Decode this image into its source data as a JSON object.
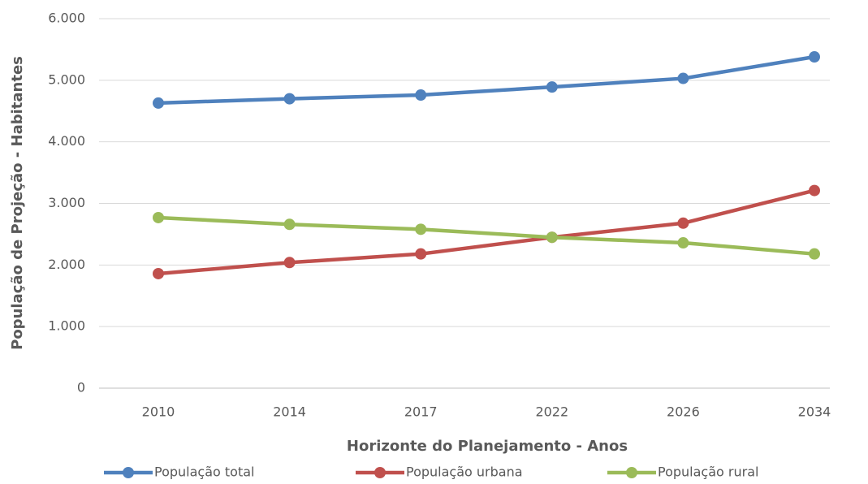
{
  "chart_data": {
    "type": "line",
    "x_label": "Horizonte do Planejamento - Anos",
    "y_label": "População de Projeção - Habitantes",
    "categories": [
      "2010",
      "2014",
      "2017",
      "2022",
      "2026",
      "2034"
    ],
    "series": [
      {
        "name": "População total",
        "color": "#4f81bd",
        "values": [
          4630,
          4700,
          4760,
          4890,
          5030,
          5380
        ]
      },
      {
        "name": "População urbana",
        "color": "#c0504d",
        "values": [
          1860,
          2040,
          2180,
          2450,
          2680,
          3210
        ]
      },
      {
        "name": "População rural",
        "color": "#9bbb59",
        "values": [
          2770,
          2660,
          2580,
          2450,
          2360,
          2180
        ]
      }
    ],
    "ylim": [
      0,
      6000
    ],
    "yticks": [
      0,
      {
        "value": 1000,
        "label": "1.000"
      },
      {
        "value": 2000,
        "label": "2.000"
      },
      {
        "value": 3000,
        "label": "3.000"
      },
      {
        "value": 4000,
        "label": "4.000"
      },
      {
        "value": 5000,
        "label": "5.000"
      },
      {
        "value": 6000,
        "label": "6.000"
      }
    ],
    "grid": true,
    "legend": "bottom"
  }
}
